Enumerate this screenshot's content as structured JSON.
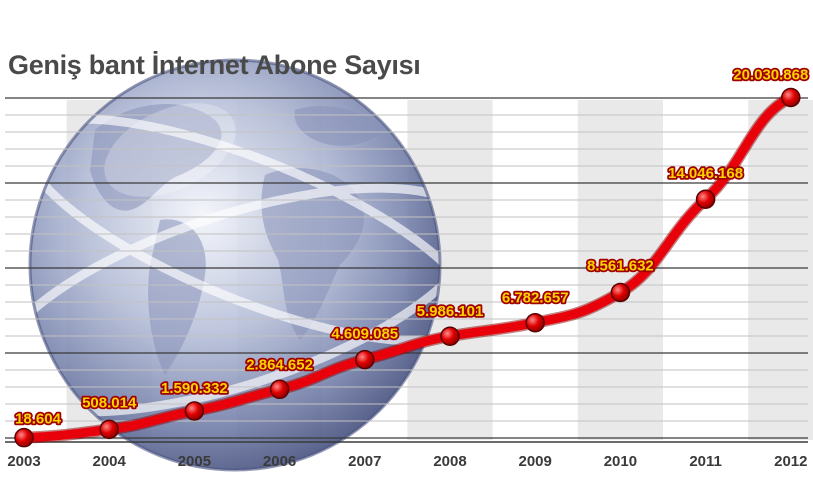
{
  "chart_data": {
    "type": "line",
    "title": "Geniş bant İnternet Abone Sayısı",
    "categories": [
      "2003",
      "2004",
      "2005",
      "2006",
      "2007",
      "2008",
      "2009",
      "2010",
      "2011",
      "2012"
    ],
    "series": [
      {
        "values": [
          18604,
          508014,
          1590332,
          2864652,
          4609085,
          5986101,
          6782657,
          8561632,
          14046168,
          20030868
        ],
        "labels": [
          "18.604",
          "508.014",
          "1.590.332",
          "2.864.652",
          "4.609.085",
          "5.986.101",
          "6.782.657",
          "8.561.632",
          "14.046.168",
          "20.030.868"
        ]
      }
    ],
    "ylim": [
      0,
      20000000
    ],
    "grid": true,
    "colors": {
      "line": "#e8000b",
      "point": "#c80000",
      "label_text": "#ffd200",
      "label_stroke": "#a00000",
      "title": "#4a4a4a"
    }
  }
}
